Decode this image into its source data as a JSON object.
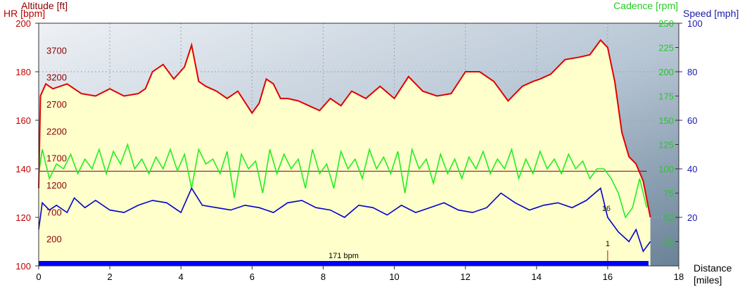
{
  "chart_data": {
    "type": "line",
    "x_axis": {
      "label_line1": "Distance",
      "label_line2": "[miles]",
      "range": [
        0,
        18
      ],
      "ticks": [
        "0",
        "2",
        "4",
        "6",
        "8",
        "10",
        "12",
        "14",
        "16",
        "18"
      ]
    },
    "axes": {
      "hr": {
        "label": "HR [bpm]",
        "range": [
          100,
          200
        ],
        "ticks": [
          "200",
          "180",
          "160",
          "140",
          "120",
          "100"
        ],
        "color": "#c00000"
      },
      "altitude": {
        "label": "Altitude [ft]",
        "range": [
          -300,
          4200
        ],
        "ticks": [
          "3700",
          "3200",
          "2700",
          "2200",
          "1700",
          "1200",
          "700",
          "200"
        ],
        "color": "#8b0000"
      },
      "cadence": {
        "label": "Cadence [rpm]",
        "range": [
          0,
          250
        ],
        "ticks": [
          "250",
          "225",
          "200",
          "175",
          "150",
          "125",
          "100",
          "75",
          "50",
          "25"
        ],
        "color": "#22cc22"
      },
      "speed": {
        "label": "Speed [mph]",
        "range": [
          0,
          100
        ],
        "ticks": [
          "100",
          "80",
          "60",
          "40",
          "20"
        ],
        "color": "#1a1aaa"
      }
    },
    "series": [
      {
        "name": "Heart rate",
        "axis": "hr",
        "color": "#e00000",
        "x": [
          0,
          0.05,
          0.2,
          0.4,
          0.8,
          1.2,
          1.6,
          2.0,
          2.4,
          2.8,
          3.0,
          3.2,
          3.5,
          3.8,
          4.1,
          4.3,
          4.5,
          4.7,
          5.0,
          5.3,
          5.6,
          6.0,
          6.2,
          6.4,
          6.6,
          6.8,
          7.0,
          7.3,
          7.6,
          7.9,
          8.2,
          8.5,
          8.8,
          9.2,
          9.6,
          10.0,
          10.4,
          10.8,
          11.2,
          11.6,
          12.0,
          12.4,
          12.8,
          13.2,
          13.6,
          13.9,
          14.1,
          14.4,
          14.8,
          15.2,
          15.5,
          15.8,
          16.0,
          16.2,
          16.4,
          16.6,
          16.8,
          17.0,
          17.2
        ],
        "y": [
          132,
          170,
          175,
          173,
          175,
          171,
          170,
          173,
          170,
          171,
          173,
          180,
          183,
          177,
          182,
          191,
          176,
          174,
          172,
          169,
          172,
          163,
          167,
          177,
          175,
          169,
          169,
          168,
          166,
          164,
          169,
          166,
          172,
          169,
          174,
          169,
          178,
          172,
          170,
          171,
          180,
          180,
          176,
          168,
          174,
          176,
          177,
          179,
          185,
          186,
          187,
          193,
          190,
          176,
          155,
          145,
          142,
          135,
          120
        ]
      },
      {
        "name": "Altitude",
        "axis": "altitude",
        "color": "#8b0000",
        "x": [
          0,
          4,
          8,
          12,
          16,
          17.1
        ],
        "y": [
          1450,
          1450,
          1450,
          1450,
          1450,
          1450
        ]
      },
      {
        "name": "Cadence",
        "axis": "cadence",
        "color": "#22ee22",
        "x": [
          0,
          0.1,
          0.3,
          0.5,
          0.7,
          0.9,
          1.1,
          1.3,
          1.5,
          1.7,
          1.9,
          2.1,
          2.3,
          2.5,
          2.7,
          2.9,
          3.1,
          3.3,
          3.5,
          3.7,
          3.9,
          4.1,
          4.3,
          4.5,
          4.7,
          4.9,
          5.1,
          5.3,
          5.5,
          5.7,
          5.9,
          6.1,
          6.3,
          6.5,
          6.7,
          6.9,
          7.1,
          7.3,
          7.5,
          7.7,
          7.9,
          8.1,
          8.3,
          8.5,
          8.7,
          8.9,
          9.1,
          9.3,
          9.5,
          9.7,
          9.9,
          10.1,
          10.3,
          10.5,
          10.7,
          10.9,
          11.1,
          11.3,
          11.5,
          11.7,
          11.9,
          12.1,
          12.3,
          12.5,
          12.7,
          12.9,
          13.1,
          13.3,
          13.5,
          13.7,
          13.9,
          14.1,
          14.3,
          14.5,
          14.7,
          14.9,
          15.1,
          15.3,
          15.5,
          15.7,
          15.9,
          16.1,
          16.3,
          16.5,
          16.7,
          16.9,
          17.1
        ],
        "y": [
          95,
          120,
          90,
          105,
          100,
          115,
          95,
          110,
          100,
          120,
          95,
          118,
          105,
          125,
          100,
          110,
          95,
          112,
          100,
          120,
          98,
          115,
          80,
          120,
          105,
          110,
          95,
          118,
          70,
          115,
          100,
          108,
          75,
          120,
          95,
          115,
          100,
          110,
          80,
          120,
          95,
          105,
          80,
          118,
          100,
          110,
          90,
          120,
          100,
          112,
          95,
          118,
          75,
          120,
          100,
          110,
          85,
          115,
          95,
          110,
          90,
          112,
          100,
          118,
          95,
          110,
          100,
          120,
          90,
          110,
          95,
          118,
          100,
          110,
          95,
          115,
          100,
          108,
          90,
          100,
          100,
          90,
          75,
          50,
          60,
          90,
          60
        ]
      },
      {
        "name": "Speed",
        "axis": "speed",
        "color": "#0000cc",
        "x": [
          0,
          0.1,
          0.3,
          0.5,
          0.8,
          1.0,
          1.3,
          1.6,
          2.0,
          2.4,
          2.8,
          3.2,
          3.6,
          4.0,
          4.3,
          4.6,
          5.0,
          5.4,
          5.8,
          6.2,
          6.6,
          7.0,
          7.4,
          7.8,
          8.2,
          8.6,
          9.0,
          9.4,
          9.8,
          10.2,
          10.6,
          11.0,
          11.4,
          11.8,
          12.2,
          12.6,
          13.0,
          13.4,
          13.8,
          14.2,
          14.6,
          15.0,
          15.4,
          15.8,
          16.0,
          16.3,
          16.6,
          16.8,
          17.0,
          17.2
        ],
        "y": [
          15,
          26,
          23,
          25,
          22,
          28,
          24,
          27,
          23,
          22,
          25,
          27,
          26,
          22,
          32,
          25,
          24,
          23,
          25,
          24,
          22,
          26,
          27,
          24,
          23,
          20,
          25,
          24,
          21,
          25,
          22,
          24,
          26,
          23,
          22,
          24,
          30,
          26,
          23,
          25,
          26,
          24,
          27,
          32,
          20,
          14,
          10,
          15,
          6,
          10
        ]
      }
    ],
    "reference_line": {
      "axis": "hr",
      "value": 139,
      "color": "#8b0000"
    },
    "bottom_bar": {
      "label": "171 bpm",
      "from": 0,
      "to": 17.15,
      "color": "#0000ff"
    },
    "marker": {
      "label": "1",
      "x": 16.0,
      "secondary_label": "16"
    },
    "grid": true
  }
}
